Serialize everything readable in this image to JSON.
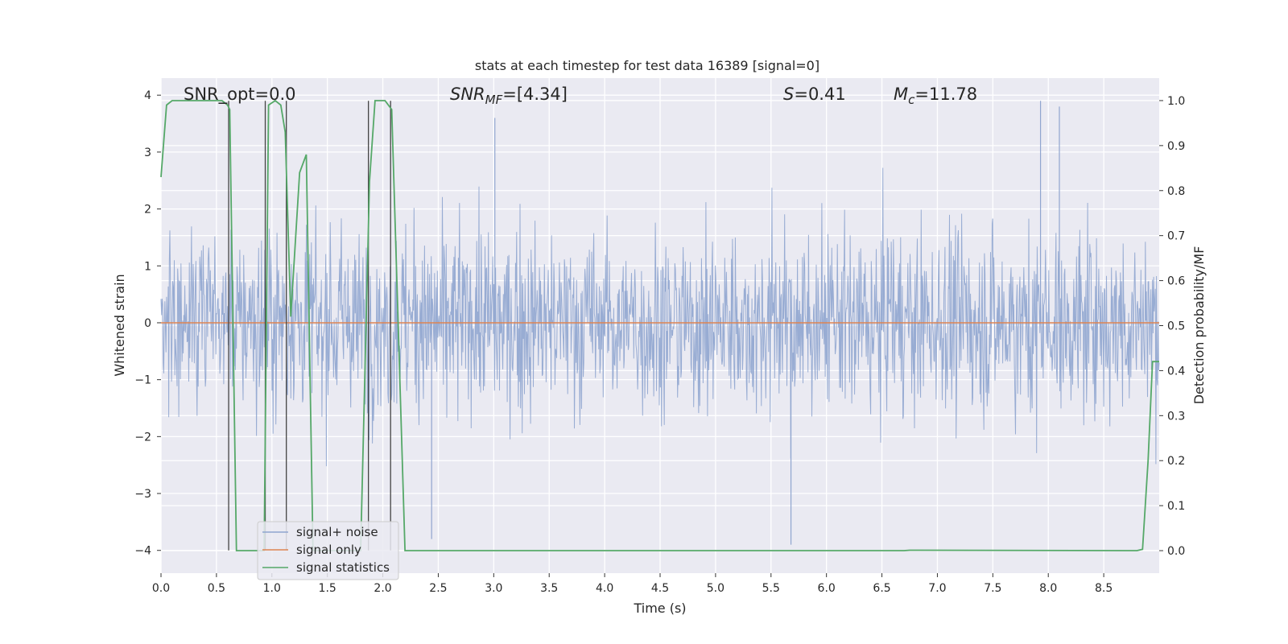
{
  "chart_data": {
    "type": "line",
    "title": "stats at each timestep for test data 16389 [signal=0]",
    "xlabel": "Time (s)",
    "ylabel": "Whitened strain",
    "ylabel_right": "Detection probability/MF",
    "xlim": [
      0.0,
      9.0
    ],
    "ylim": [
      -4.4,
      4.3
    ],
    "ylim_right": [
      -0.05,
      1.05
    ],
    "x_ticks": [
      "0.0",
      "0.5",
      "1.0",
      "1.5",
      "2.0",
      "2.5",
      "3.0",
      "3.5",
      "4.0",
      "4.5",
      "5.0",
      "5.5",
      "6.0",
      "6.5",
      "7.0",
      "7.5",
      "8.0",
      "8.5"
    ],
    "y_ticks": [
      "4",
      "3",
      "2",
      "1",
      "0",
      "−1",
      "−2",
      "−3",
      "−4"
    ],
    "y_ticks_right": [
      "1.0",
      "0.9",
      "0.8",
      "0.7",
      "0.6",
      "0.5",
      "0.4",
      "0.3",
      "0.2",
      "0.1",
      "0.0"
    ],
    "grid": true,
    "legend_position": "lower-left",
    "annotations": {
      "snr_opt": "SNR_opt=0.0",
      "snr_mf_label": "SNR",
      "snr_mf_sub": "MF",
      "snr_mf_value": "=[4.34]",
      "s_label": "S",
      "s_value": "=0.41",
      "mc_label": "M",
      "mc_sub": "c",
      "mc_value": "=11.78"
    },
    "series": [
      {
        "name": "signal+ noise",
        "color": "#8fa5cf",
        "description_kind": "dense whitened strain noise, approx. within ±2.5 with spikes to ±4, sampled over 0–9 s",
        "envelope_y": [
          -2.5,
          2.5
        ],
        "spike_extremes": [
          [
            2.44,
            -3.8
          ],
          [
            5.68,
            -3.9
          ],
          [
            7.93,
            3.9
          ],
          [
            3.01,
            3.6
          ],
          [
            8.1,
            3.8
          ]
        ]
      },
      {
        "name": "signal only",
        "color": "#dd8452",
        "x": [
          0.0,
          9.0
        ],
        "y": [
          0.0,
          0.0
        ]
      },
      {
        "name": "signal statistics",
        "color": "#55a868",
        "axis": "right",
        "x": [
          0.0,
          0.05,
          0.1,
          0.2,
          0.55,
          0.6,
          0.62,
          0.68,
          0.93,
          0.97,
          1.03,
          1.08,
          1.12,
          1.17,
          1.25,
          1.31,
          1.37,
          1.42,
          1.8,
          1.88,
          1.93,
          2.02,
          2.08,
          2.2,
          6.7,
          6.75,
          8.8,
          8.85,
          8.9,
          8.94,
          9.0
        ],
        "y": [
          0.83,
          0.99,
          1.0,
          1.0,
          1.0,
          0.99,
          0.98,
          0.0,
          0.0,
          0.99,
          1.0,
          0.99,
          0.93,
          0.52,
          0.84,
          0.88,
          0.0,
          0.0,
          0.0,
          0.82,
          1.0,
          1.0,
          0.98,
          0.0,
          0.0,
          0.001,
          0.0,
          0.003,
          0.2,
          0.42,
          0.42
        ]
      }
    ],
    "vertical_markers_x": [
      0.61,
      0.94,
      1.13,
      1.87,
      2.07
    ],
    "legend": [
      "signal+ noise",
      "signal only",
      "signal statistics"
    ]
  }
}
